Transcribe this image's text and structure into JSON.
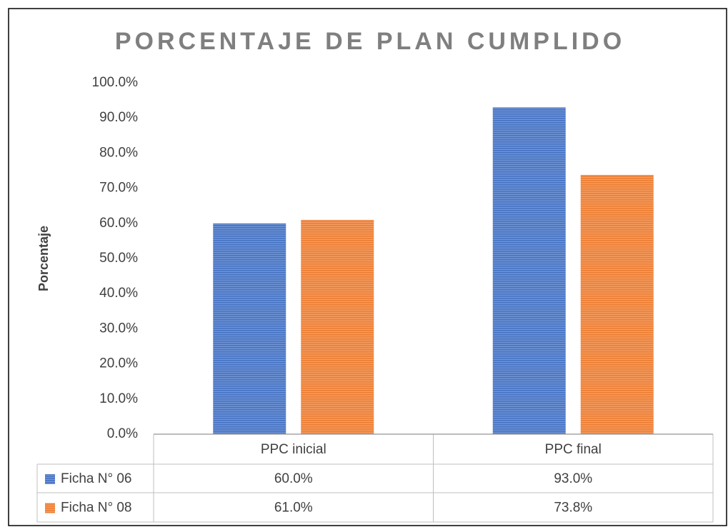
{
  "chart_data": {
    "type": "bar",
    "title": "PORCENTAJE DE PLAN CUMPLIDO",
    "y_label": "Porcentaje",
    "categories": [
      "PPC inicial",
      "PPC final"
    ],
    "series": [
      {
        "name": "Ficha N° 06",
        "color": "#4472c4",
        "values": [
          60,
          93
        ],
        "value_labels": [
          "60.0%",
          "93.0%"
        ]
      },
      {
        "name": "Ficha N° 08",
        "color": "#ed7d31",
        "values": [
          61,
          73.8
        ],
        "value_labels": [
          "61.0%",
          "73.8%"
        ]
      }
    ],
    "ylim": [
      0,
      100
    ],
    "yticks": [
      {
        "value": 0,
        "label": "0.0%"
      },
      {
        "value": 10,
        "label": "10.0%"
      },
      {
        "value": 20,
        "label": "20.0%"
      },
      {
        "value": 30,
        "label": "30.0%"
      },
      {
        "value": 40,
        "label": "40.0%"
      },
      {
        "value": 50,
        "label": "50.0%"
      },
      {
        "value": 60,
        "label": "60.0%"
      },
      {
        "value": 70,
        "label": "70.0%"
      },
      {
        "value": 80,
        "label": "80.0%"
      },
      {
        "value": 90,
        "label": "90.0%"
      },
      {
        "value": 100,
        "label": "100.0%"
      }
    ],
    "grid": false
  }
}
